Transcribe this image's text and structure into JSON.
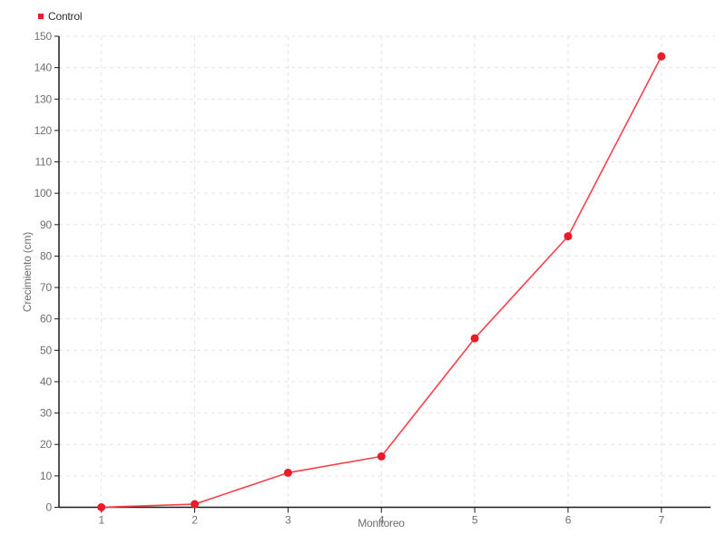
{
  "page": {
    "background": "#ffffff"
  },
  "legend": {
    "items": [
      {
        "label": "Control",
        "color": "#ec1c2b"
      }
    ]
  },
  "chart_data": {
    "type": "line",
    "title": "",
    "xlabel": "Monitoreo",
    "ylabel": "Crecimiento (cm)",
    "categories": [
      "1",
      "2",
      "3",
      "4",
      "5",
      "6",
      "7"
    ],
    "series": [
      {
        "name": "Control",
        "marker_color": "#e91c2b",
        "line_color": "#f4434d",
        "values": [
          0,
          1,
          11,
          16.2,
          53.8,
          86.3,
          143.6
        ]
      }
    ],
    "ylim": [
      0,
      150
    ],
    "ytick_step": 10,
    "grid": "dashed",
    "legend_position": "top-left",
    "marker": "circle"
  },
  "colors": {
    "grid": "#e4e4e4",
    "axis": "#1a1a1a",
    "tick_text": "#6e6e6e"
  }
}
